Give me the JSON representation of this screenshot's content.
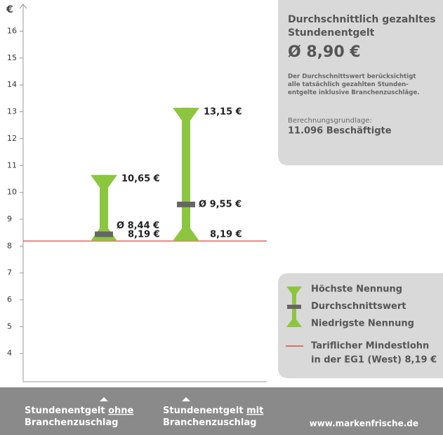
{
  "chart_data": {
    "type": "range",
    "y_label": "€",
    "categories": [
      "Stundenentgelt ohne Branchenzuschlag",
      "Stundenentgelt mit Branchenzuschlag"
    ],
    "series": [
      {
        "name": "Höchste Nennung",
        "color": "#8cc63f",
        "values": [
          10.65,
          13.15
        ],
        "value_labels": [
          "10,65 €",
          "13,15 €"
        ]
      },
      {
        "name": "Durchschnittswert",
        "color": "#666666",
        "values": [
          8.44,
          9.55
        ],
        "value_labels": [
          "Ø 8,44 €",
          "Ø 9,55 €"
        ]
      },
      {
        "name": "Niedrigste Nennung",
        "color": "#8cc63f",
        "values": [
          8.19,
          8.19
        ],
        "value_labels": [
          "8,19 €",
          "8,19 €"
        ]
      }
    ],
    "threshold": {
      "value": 8.19,
      "color": "#d0342c",
      "label_lines": [
        "Tariflicher Mindestlohn",
        "in der EG1 (West) 8,19 €"
      ]
    },
    "ylim": [
      2.95,
      16.9
    ],
    "yticks": [
      4,
      5,
      6,
      7,
      8,
      9,
      10,
      11,
      12,
      13,
      14,
      15,
      16
    ],
    "info": {
      "heading_lines": [
        "Durchschnittlich gezahltes",
        "Stundenentgelt"
      ],
      "big": "Ø 8,90 €",
      "note_lines": [
        "Der Durchschnittswert berücksichtigt",
        "alle tatsächlich gezahlten Stunden-",
        "entgelte inklusive Branchenzuschläge."
      ],
      "basis_label": "Berechnungsgrundlage:",
      "basis_value": "11.096 Beschäftigte"
    },
    "footer": "www.markenfrische.de"
  }
}
